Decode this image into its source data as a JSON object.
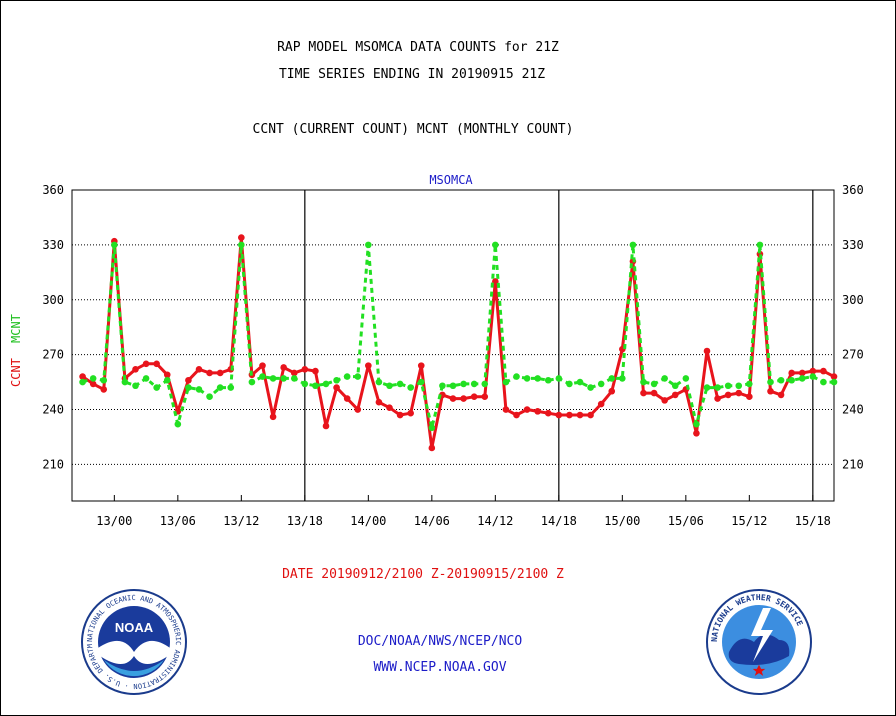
{
  "header": {
    "title_line1": "RAP MODEL MSOMCA DATA COUNTS for 21Z",
    "title_line2": "TIME SERIES ENDING IN 20190915 21Z",
    "subtitle": "CCNT (CURRENT COUNT) MCNT (MONTHLY COUNT)"
  },
  "footer": {
    "date_range": "DATE 20190912/2100 Z-20190915/2100 Z",
    "agency": "DOC/NOAA/NWS/NCEP/NCO",
    "website": "WWW.NCEP.NOAA.GOV"
  },
  "logos": {
    "noaa_text": "NOAA",
    "noaa_ring": "NATIONAL OCEANIC AND ATMOSPHERIC ADMINISTRATION · U.S. DEPARTMENT OF COMMERCE ·",
    "nws_ring": "NATIONAL WEATHER SERVICE"
  },
  "chart_data": {
    "type": "line",
    "title": "MSOMCA",
    "ylabel_ccnt": "CCNT",
    "ylabel_mcnt": "MCNT",
    "ylim": [
      190,
      360
    ],
    "yticks": [
      210,
      240,
      270,
      300,
      330,
      360
    ],
    "grid": true,
    "xlim": [
      -4,
      68
    ],
    "xtick_positions": [
      0,
      6,
      12,
      18,
      24,
      30,
      36,
      42,
      48,
      54,
      60,
      66
    ],
    "xtick_labels": [
      "13/00",
      "13/06",
      "13/12",
      "13/18",
      "14/00",
      "14/06",
      "14/12",
      "14/18",
      "15/00",
      "15/06",
      "15/12",
      "15/18"
    ],
    "day_dividers": [
      18,
      42,
      66
    ],
    "colors": {
      "ccnt": "#e8141c",
      "mcnt": "#22e022"
    },
    "series": [
      {
        "name": "CCNT",
        "x": [
          -3,
          -2,
          -1,
          0,
          1,
          2,
          3,
          4,
          5,
          6,
          7,
          8,
          9,
          10,
          11,
          12,
          13,
          14,
          15,
          16,
          17,
          18,
          19,
          20,
          21,
          22,
          23,
          24,
          25,
          26,
          27,
          28,
          29,
          30,
          31,
          32,
          33,
          34,
          35,
          36,
          37,
          38,
          39,
          40,
          41,
          42,
          43,
          44,
          45,
          46,
          47,
          48,
          49,
          50,
          51,
          52,
          53,
          54,
          55,
          56,
          57,
          58,
          59,
          60,
          61,
          62,
          63,
          64,
          65,
          66,
          67,
          68
        ],
        "values": [
          258,
          254,
          251,
          332,
          257,
          262,
          265,
          265,
          259,
          239,
          256,
          262,
          260,
          260,
          262,
          334,
          259,
          264,
          236,
          263,
          260,
          262,
          261,
          231,
          252,
          246,
          240,
          264,
          244,
          241,
          237,
          238,
          264,
          219,
          248,
          246,
          246,
          247,
          247,
          310,
          240,
          237,
          240,
          239,
          238,
          237,
          237,
          237,
          237,
          243,
          250,
          273,
          321,
          249,
          249,
          245,
          248,
          251,
          227,
          272,
          246,
          248,
          249,
          247,
          325,
          250,
          248,
          260,
          260,
          261,
          261,
          258
        ],
        "note": ""
      },
      {
        "name": "MCNT",
        "x": [
          -3,
          -2,
          -1,
          0,
          1,
          2,
          3,
          4,
          5,
          6,
          7,
          8,
          9,
          10,
          11,
          12,
          13,
          14,
          15,
          16,
          17,
          18,
          19,
          20,
          21,
          22,
          23,
          24,
          25,
          26,
          27,
          28,
          29,
          30,
          31,
          32,
          33,
          34,
          35,
          36,
          37,
          38,
          39,
          40,
          41,
          42,
          43,
          44,
          45,
          46,
          47,
          48,
          49,
          50,
          51,
          52,
          53,
          54,
          55,
          56,
          57,
          58,
          59,
          60,
          61,
          62,
          63,
          64,
          65,
          66,
          67,
          68
        ],
        "values": [
          255,
          257,
          256,
          330,
          255,
          253,
          257,
          252,
          256,
          232,
          252,
          251,
          247,
          252,
          252,
          330,
          255,
          258,
          257,
          257,
          257,
          254,
          253,
          254,
          256,
          258,
          258,
          330,
          255,
          253,
          254,
          252,
          255,
          230,
          253,
          253,
          254,
          254,
          254,
          330,
          255,
          258,
          257,
          257,
          256,
          257,
          254,
          255,
          252,
          254,
          257,
          257,
          330,
          255,
          254,
          257,
          253,
          257,
          232,
          252,
          252,
          253,
          253,
          254,
          330,
          255,
          256,
          256,
          257,
          258,
          255,
          255
        ]
      }
    ]
  }
}
